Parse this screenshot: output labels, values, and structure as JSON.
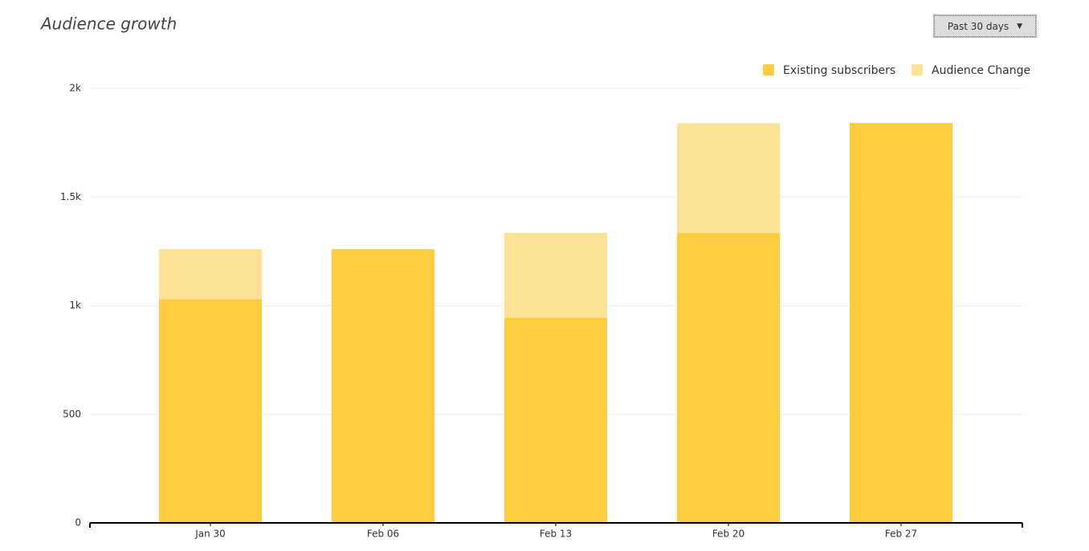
{
  "dropdown": {
    "label": "Past 30 days"
  },
  "chart_data": {
    "type": "stacked-bar",
    "title": "Audience growth",
    "categories": [
      "Jan 30",
      "Feb 06",
      "Feb 13",
      "Feb 20",
      "Feb 27"
    ],
    "series": [
      {
        "name": "Existing subscribers",
        "color": "#fecd3f",
        "values": [
          1030,
          1260,
          945,
          1335,
          1840
        ]
      },
      {
        "name": "Audience Change",
        "color": "#fde296",
        "values": [
          230,
          0,
          390,
          505,
          0
        ]
      }
    ],
    "ylim": [
      0,
      2000
    ],
    "yticks": [
      0,
      500,
      {
        "value": 1000,
        "label": "1k"
      },
      {
        "value": 1500,
        "label": "1.5k"
      },
      {
        "value": 2000,
        "label": "2k"
      }
    ],
    "grid": true,
    "legend": "top-right"
  }
}
